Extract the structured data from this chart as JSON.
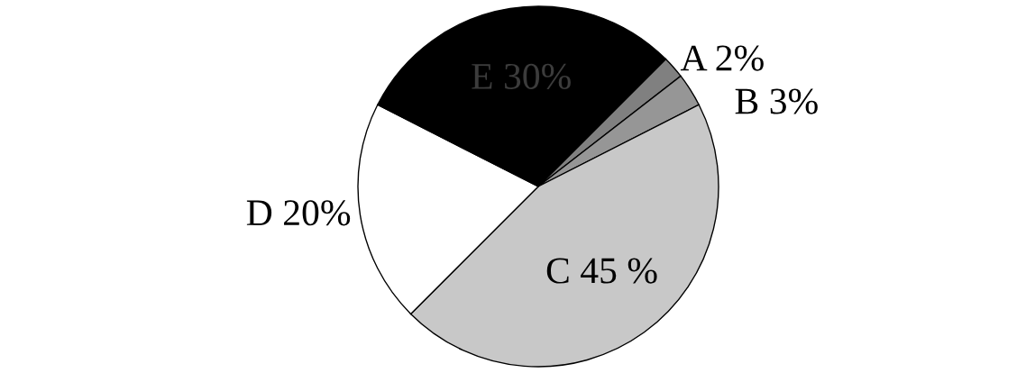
{
  "chart_data": {
    "type": "pie",
    "categories": [
      "A",
      "B",
      "C",
      "D",
      "E"
    ],
    "values": [
      2,
      3,
      45,
      20,
      30
    ],
    "value_labels": [
      "2%",
      "3%",
      "45 %",
      "20%",
      "30%"
    ],
    "colors": [
      "#808080",
      "#969696",
      "#c8c8c8",
      "#ffffff",
      "#000000"
    ]
  }
}
